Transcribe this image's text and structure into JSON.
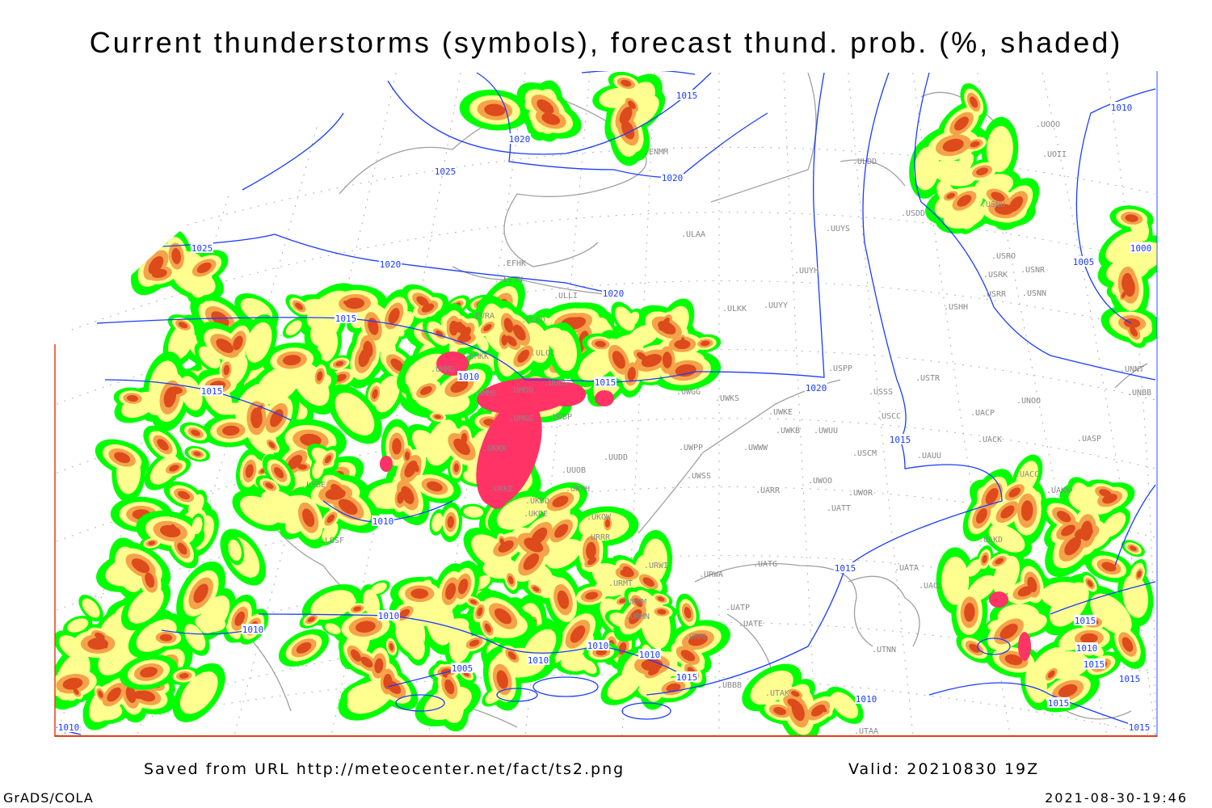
{
  "title": "Current thunderstorms (symbols), forecast thund. prob. (%, shaded)",
  "footer": {
    "saved": "Saved from URL http://meteocenter.net/fact/ts2.png",
    "valid": "Valid: 20210830 19Z",
    "software": "GrADS/COLA",
    "timestamp": "2021-08-30-19:46"
  },
  "legend_colors": {
    "low_prob": "#00ff00",
    "mid_prob": "#ffff90",
    "high_prob": "#f5a34a",
    "very_high_prob": "#dd4a1c",
    "current_thunderstorm": "#ff3366",
    "isobar": "#1a3cff",
    "coastline": "#a0a0a0",
    "station_label": "#888888"
  },
  "isobar_labels": [
    "1015",
    "1020",
    "1025",
    "1020",
    "1025",
    "1020",
    "1020",
    "1015",
    "1010",
    "1015",
    "1015",
    "1020",
    "1015",
    "1010",
    "1010",
    "1010",
    "1005",
    "1010",
    "1010",
    "1010",
    "1015",
    "1015",
    "1010",
    "1010",
    "1005",
    "1000",
    "1015",
    "1010",
    "1015",
    "1015",
    "1015",
    "1015",
    "1010"
  ],
  "stations": [
    "ULAA",
    "UUYS",
    "UUYH",
    "ULKK",
    "UUYY",
    "USRO",
    "USRK",
    "USNR",
    "USRR",
    "USNN",
    "USHH",
    "USPP",
    "USTR",
    "USSS",
    "USCC",
    "UWKE",
    "UWKB",
    "UWUU",
    "UNOO",
    "UACP",
    "UACK",
    "UASP",
    "USCM",
    "UAUU",
    "UWWW",
    "UWPP",
    "UWSS",
    "UWOO",
    "UWOR",
    "UARR",
    "UACC",
    "UAKK",
    "UATT",
    "UWGG",
    "UWKS",
    "ULLI",
    "ULOD",
    "ULOL",
    "EFHK",
    "EETN",
    "EVRA",
    "UUDD",
    "UUOB",
    "UKHH",
    "UKDD",
    "UKDE",
    "UKOW",
    "URRR",
    "URWI",
    "URWA",
    "UATG",
    "UATP",
    "UATE",
    "URML",
    "UBBB",
    "UTAK",
    "UTNN",
    "UATA",
    "UAOL",
    "UAKD",
    "UTAA",
    "URMT",
    "URMM",
    "URMN",
    "UKKK",
    "UKKE",
    "UMMG",
    "UMMS",
    "UMOO",
    "UUBS",
    "UMGG",
    "UUBP",
    "ENMM",
    "ULDD",
    "USDD",
    "UOOO",
    "UOII",
    "USNU",
    "UNNT",
    "UNBB",
    "LYBE",
    "LBSF",
    "UMKK"
  ]
}
